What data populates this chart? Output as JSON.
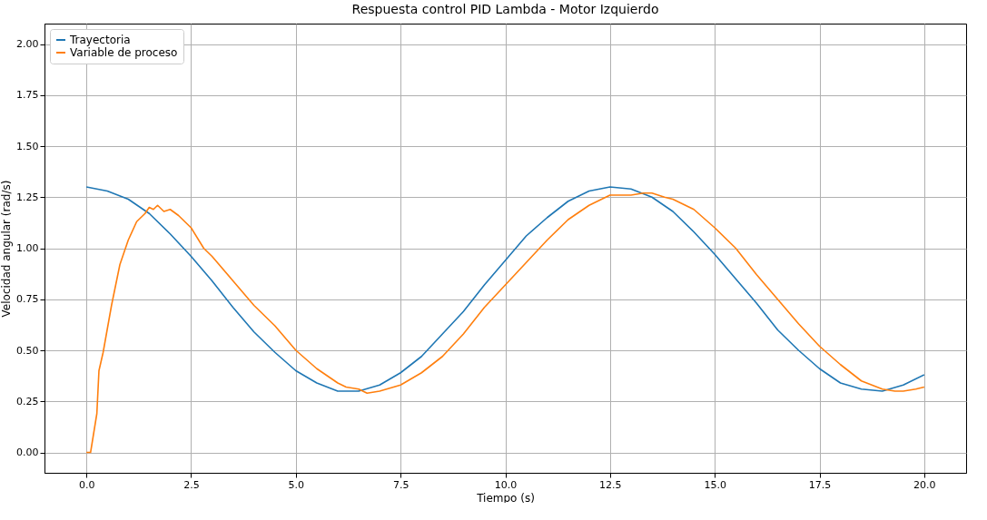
{
  "chart_data": {
    "type": "line",
    "title": "Respuesta control PID Lambda - Motor Izquierdo",
    "xlabel": "Tiempo (s)",
    "ylabel": "Velocidad angular (rad/s)",
    "xlim": [
      -1,
      21
    ],
    "xticks": [
      {
        "value": 0,
        "label": "0.0"
      },
      {
        "value": 2.5,
        "label": "2.5"
      },
      {
        "value": 5,
        "label": "5.0"
      },
      {
        "value": 7.5,
        "label": "7.5"
      },
      {
        "value": 10,
        "label": "10.0"
      },
      {
        "value": 12.5,
        "label": "12.5"
      },
      {
        "value": 15,
        "label": "15.0"
      },
      {
        "value": 17.5,
        "label": "17.5"
      },
      {
        "value": 20,
        "label": "20.0"
      }
    ],
    "ylim": [
      -0.1,
      2.1
    ],
    "yticks": [
      {
        "value": 0,
        "label": "0.00"
      },
      {
        "value": 0.25,
        "label": "0.25"
      },
      {
        "value": 0.5,
        "label": "0.50"
      },
      {
        "value": 0.75,
        "label": "0.75"
      },
      {
        "value": 1,
        "label": "1.00"
      },
      {
        "value": 1.25,
        "label": "1.25"
      },
      {
        "value": 1.5,
        "label": "1.50"
      },
      {
        "value": 1.75,
        "label": "1.75"
      },
      {
        "value": 2,
        "label": "2.00"
      }
    ],
    "grid": true,
    "legend": "top left",
    "series": [
      {
        "name": "Trayectoria",
        "color": "#1f77b4",
        "x": [
          0,
          0.5,
          1,
          1.5,
          2,
          2.5,
          3,
          3.5,
          4,
          4.5,
          5,
          5.5,
          6,
          6.5,
          7,
          7.5,
          8,
          8.5,
          9,
          9.5,
          10,
          10.5,
          11,
          11.5,
          12,
          12.5,
          13,
          13.5,
          14,
          14.5,
          15,
          15.5,
          16,
          16.5,
          17,
          17.5,
          18,
          18.5,
          19,
          19.5,
          20
        ],
        "values": [
          1.3,
          1.28,
          1.24,
          1.17,
          1.07,
          0.96,
          0.84,
          0.71,
          0.59,
          0.49,
          0.4,
          0.34,
          0.3,
          0.3,
          0.33,
          0.39,
          0.47,
          0.58,
          0.69,
          0.82,
          0.94,
          1.06,
          1.15,
          1.23,
          1.28,
          1.3,
          1.29,
          1.25,
          1.18,
          1.08,
          0.97,
          0.85,
          0.73,
          0.6,
          0.5,
          0.41,
          0.34,
          0.31,
          0.3,
          0.33,
          0.38
        ]
      },
      {
        "name": "Variable de proceso",
        "color": "#ff7f0e",
        "x": [
          0,
          0.1,
          0.25,
          0.3,
          0.4,
          0.6,
          0.8,
          1.0,
          1.2,
          1.4,
          1.5,
          1.6,
          1.7,
          1.85,
          2.0,
          2.2,
          2.4,
          2.5,
          2.8,
          3.0,
          3.5,
          4.0,
          4.5,
          5.0,
          5.5,
          6.0,
          6.2,
          6.5,
          6.7,
          7.0,
          7.5,
          8.0,
          8.5,
          9.0,
          9.5,
          10.0,
          10.5,
          11.0,
          11.5,
          12.0,
          12.3,
          12.5,
          12.8,
          13.0,
          13.3,
          13.5,
          13.8,
          14.0,
          14.5,
          15.0,
          15.5,
          16.0,
          16.5,
          17.0,
          17.5,
          18.0,
          18.5,
          19.0,
          19.3,
          19.5,
          19.8,
          20.0
        ],
        "values": [
          0,
          0,
          0.19,
          0.4,
          0.49,
          0.72,
          0.92,
          1.04,
          1.13,
          1.17,
          1.2,
          1.19,
          1.21,
          1.18,
          1.19,
          1.16,
          1.12,
          1.1,
          1.0,
          0.96,
          0.84,
          0.72,
          0.62,
          0.5,
          0.41,
          0.34,
          0.32,
          0.31,
          0.29,
          0.3,
          0.33,
          0.39,
          0.47,
          0.58,
          0.71,
          0.82,
          0.93,
          1.04,
          1.14,
          1.21,
          1.24,
          1.26,
          1.26,
          1.26,
          1.27,
          1.27,
          1.25,
          1.24,
          1.19,
          1.1,
          1.0,
          0.87,
          0.75,
          0.63,
          0.52,
          0.43,
          0.35,
          0.31,
          0.3,
          0.3,
          0.31,
          0.32
        ]
      }
    ]
  }
}
